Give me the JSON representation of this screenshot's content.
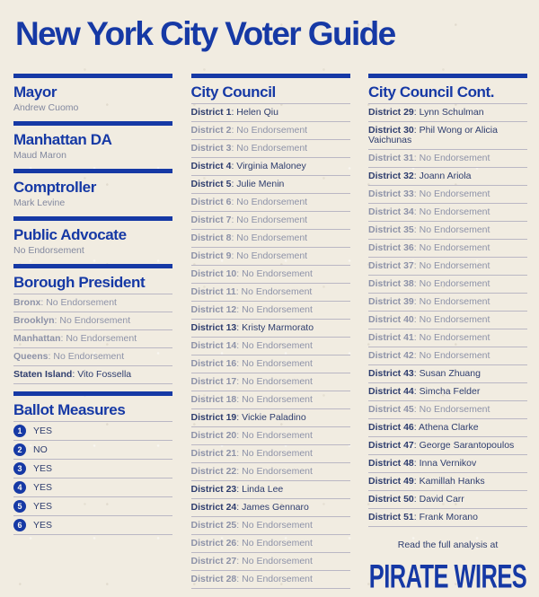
{
  "title": "New York City Voter Guide",
  "colors": {
    "background": "#f1ece1",
    "primary_blue": "#1639a5",
    "endorsed_navy": "#2e3d6e",
    "muted_gray": "#8d92a8"
  },
  "left_sections": [
    {
      "heading": "Mayor",
      "value": "Andrew Cuomo"
    },
    {
      "heading": "Manhattan DA",
      "value": "Maud Maron"
    },
    {
      "heading": "Comptroller",
      "value": "Mark Levine"
    },
    {
      "heading": "Public Advocate",
      "value": "No Endorsement"
    }
  ],
  "borough_president": {
    "heading": "Borough President",
    "rows": [
      {
        "label": "Bronx",
        "value": "No Endorsement"
      },
      {
        "label": "Brooklyn",
        "value": "No Endorsement"
      },
      {
        "label": "Manhattan",
        "value": "No Endorsement"
      },
      {
        "label": "Queens",
        "value": "No Endorsement"
      },
      {
        "label": "Staten Island",
        "value": "Vito Fossella"
      }
    ]
  },
  "ballot_measures": {
    "heading": "Ballot Measures",
    "rows": [
      {
        "number": "1",
        "answer": "YES"
      },
      {
        "number": "2",
        "answer": "NO"
      },
      {
        "number": "3",
        "answer": "YES"
      },
      {
        "number": "4",
        "answer": "YES"
      },
      {
        "number": "5",
        "answer": "YES"
      },
      {
        "number": "6",
        "answer": "YES"
      }
    ]
  },
  "council": {
    "heading": "City Council",
    "rows": [
      {
        "label": "District 1",
        "value": "Helen Qiu"
      },
      {
        "label": "District 2",
        "value": "No Endorsement"
      },
      {
        "label": "District 3",
        "value": "No Endorsement"
      },
      {
        "label": "District 4",
        "value": "Virginia Maloney"
      },
      {
        "label": "District 5",
        "value": "Julie Menin"
      },
      {
        "label": "District 6",
        "value": "No Endorsement"
      },
      {
        "label": "District 7",
        "value": "No Endorsement"
      },
      {
        "label": "District 8",
        "value": "No Endorsement"
      },
      {
        "label": "District 9",
        "value": "No Endorsement"
      },
      {
        "label": "District 10",
        "value": "No Endorsement"
      },
      {
        "label": "District 11",
        "value": "No Endorsement"
      },
      {
        "label": "District 12",
        "value": "No Endorsement"
      },
      {
        "label": "District 13",
        "value": "Kristy Marmorato"
      },
      {
        "label": "District 14",
        "value": "No Endorsement"
      },
      {
        "label": "District 16",
        "value": "No Endorsement"
      },
      {
        "label": "District 17",
        "value": "No Endorsement"
      },
      {
        "label": "District 18",
        "value": "No Endorsement"
      },
      {
        "label": "District 19",
        "value": "Vickie Paladino"
      },
      {
        "label": "District 20",
        "value": "No Endorsement"
      },
      {
        "label": "District 21",
        "value": "No Endorsement"
      },
      {
        "label": "District 22",
        "value": "No Endorsement"
      },
      {
        "label": "District 23",
        "value": "Linda Lee"
      },
      {
        "label": "District 24",
        "value": "James Gennaro"
      },
      {
        "label": "District 25",
        "value": "No Endorsement"
      },
      {
        "label": "District 26",
        "value": "No Endorsement"
      },
      {
        "label": "District 27",
        "value": "No Endorsement"
      },
      {
        "label": "District 28",
        "value": "No Endorsement"
      }
    ]
  },
  "council_cont": {
    "heading": "City Council Cont.",
    "rows": [
      {
        "label": "District 29",
        "value": "Lynn Schulman"
      },
      {
        "label": "District 30",
        "value": "Phil Wong or Alicia Vaichunas"
      },
      {
        "label": "District 31",
        "value": "No Endorsement"
      },
      {
        "label": "District 32",
        "value": "Joann Ariola"
      },
      {
        "label": "District 33",
        "value": "No Endorsement"
      },
      {
        "label": "District 34",
        "value": "No Endorsement"
      },
      {
        "label": "District 35",
        "value": "No Endorsement"
      },
      {
        "label": "District 36",
        "value": "No Endorsement"
      },
      {
        "label": "District 37",
        "value": "No Endorsement"
      },
      {
        "label": "District 38",
        "value": "No Endorsement"
      },
      {
        "label": "District 39",
        "value": "No Endorsement"
      },
      {
        "label": "District 40",
        "value": "No Endorsement"
      },
      {
        "label": "District 41",
        "value": "No Endorsement"
      },
      {
        "label": "District 42",
        "value": "No Endorsement"
      },
      {
        "label": "District 43",
        "value": "Susan Zhuang"
      },
      {
        "label": "District 44",
        "value": "Simcha Felder"
      },
      {
        "label": "District 45",
        "value": "No Endorsement"
      },
      {
        "label": "District 46",
        "value": "Athena Clarke"
      },
      {
        "label": "District 47",
        "value": "George Sarantopoulos"
      },
      {
        "label": "District 48",
        "value": "Inna Vernikov"
      },
      {
        "label": "District 49",
        "value": "Kamillah Hanks"
      },
      {
        "label": "District 50",
        "value": "David Carr"
      },
      {
        "label": "District 51",
        "value": "Frank Morano"
      }
    ]
  },
  "footer": {
    "read_text": "Read the full analysis at",
    "brand": "PIRATE WIRES"
  }
}
